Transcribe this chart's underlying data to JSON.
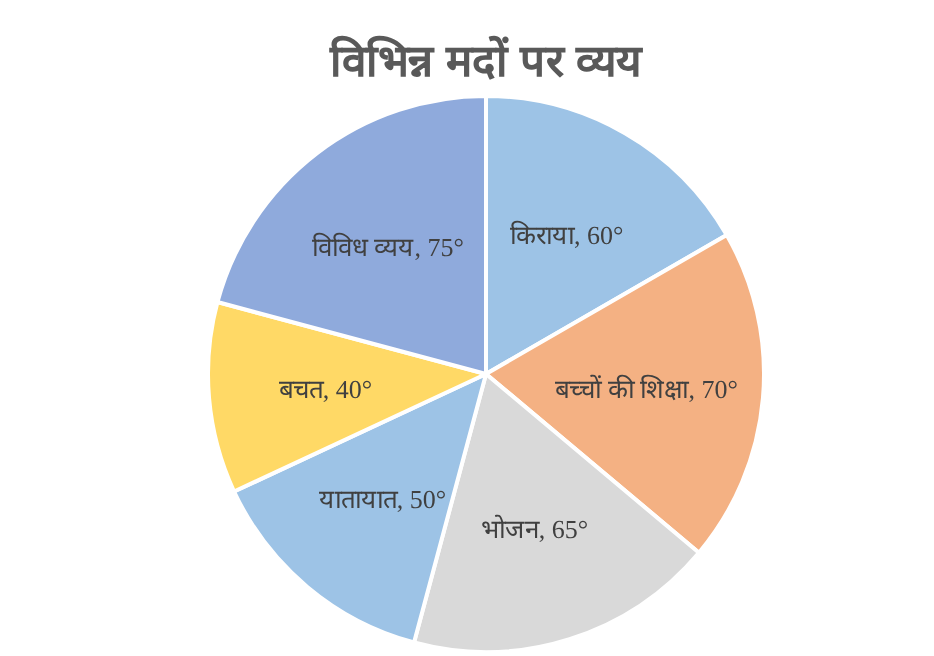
{
  "chart_data": {
    "type": "pie",
    "title": "विभिन्न मदों पर व्यय",
    "categories": [
      "किराया",
      "बच्चों की शिक्षा",
      "भोजन",
      "यातायात",
      "बचत",
      "विविध व्यय"
    ],
    "values": [
      60,
      70,
      65,
      50,
      40,
      75
    ],
    "value_labels": [
      "60°",
      "70°",
      "65°",
      "50°",
      "40°",
      "75°"
    ],
    "colors": [
      "#9dc3e6",
      "#f4b183",
      "#d9d9d9",
      "#9dc3e6",
      "#ffd966",
      "#8faadc"
    ],
    "legend": false
  }
}
